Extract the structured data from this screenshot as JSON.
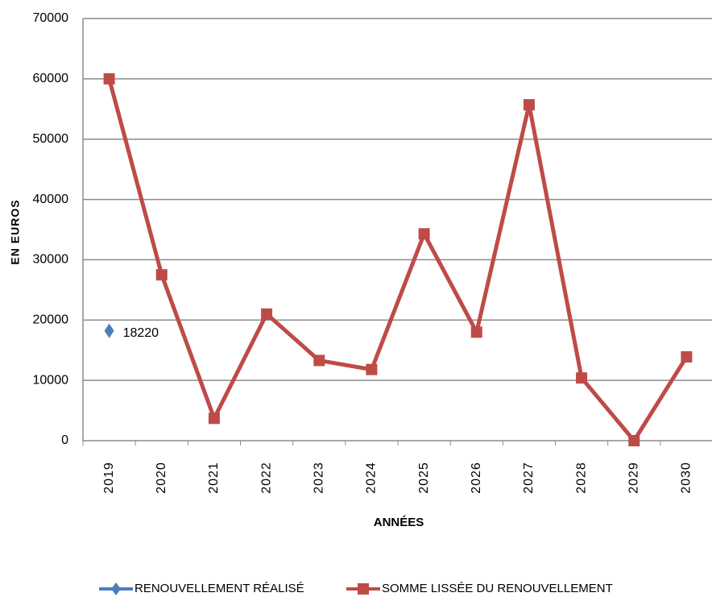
{
  "chart_data": {
    "type": "line",
    "x_label": "ANNÉES",
    "y_label": "EN EUROS",
    "categories": [
      "2019",
      "2020",
      "2021",
      "2022",
      "2023",
      "2024",
      "2025",
      "2026",
      "2027",
      "2028",
      "2029",
      "2030"
    ],
    "series": [
      {
        "name": "RENOUVELLEMENT RÉALISÉ",
        "color": "#4a7ebb",
        "marker": "diamond",
        "values": [
          18220,
          null,
          null,
          null,
          null,
          null,
          null,
          null,
          null,
          null,
          null,
          null
        ]
      },
      {
        "name": "SOMME LISSÉE DU RENOUVELLEMENT",
        "color": "#be4b48",
        "marker": "square",
        "values": [
          60000,
          27500,
          3700,
          21000,
          13300,
          11800,
          34300,
          18000,
          55700,
          10400,
          0,
          13900
        ]
      }
    ],
    "ylim": [
      0,
      70000
    ],
    "yticks": [
      0,
      10000,
      20000,
      30000,
      40000,
      50000,
      60000,
      70000
    ],
    "grid": true,
    "legend": "bottom"
  }
}
